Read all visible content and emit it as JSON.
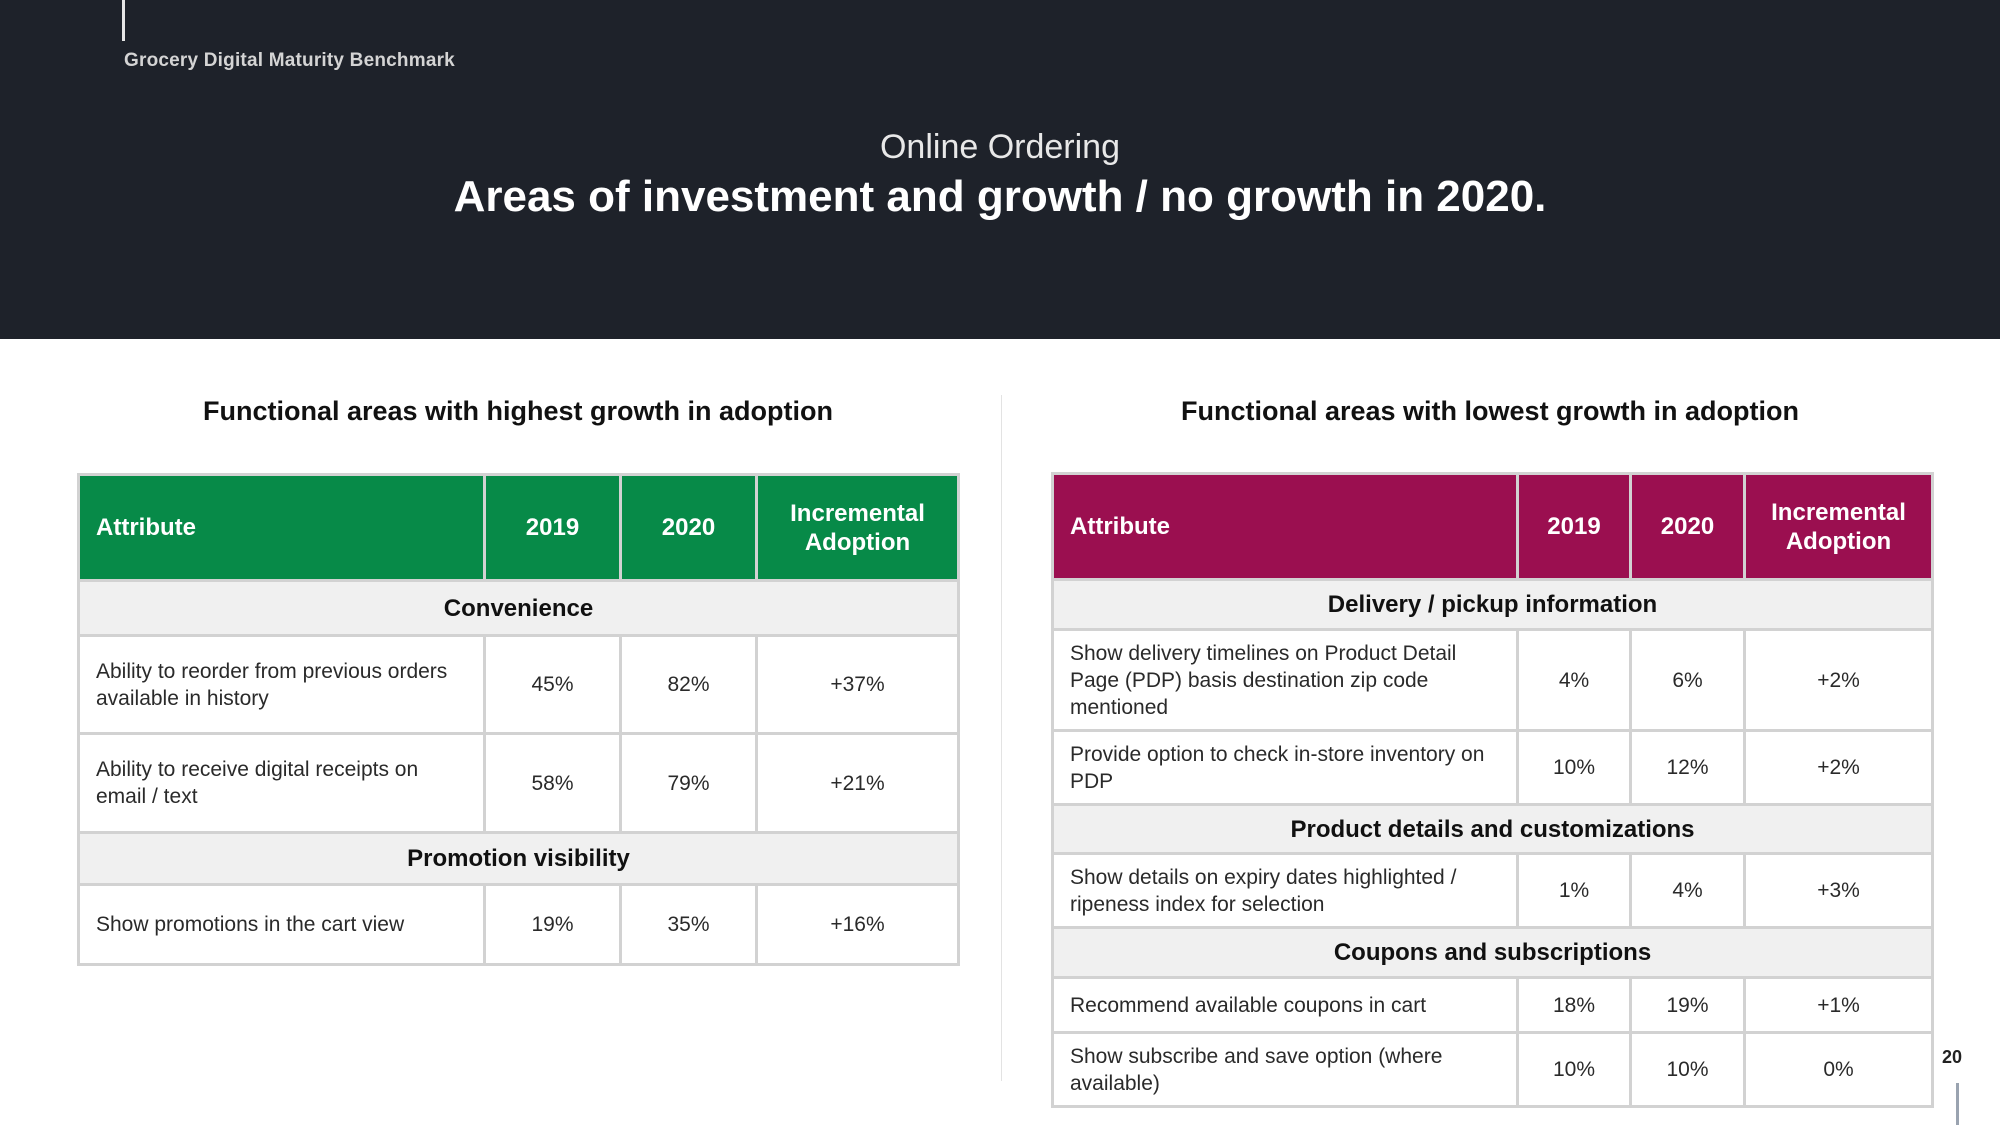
{
  "header": {
    "brand": "Grocery Digital Maturity Benchmark",
    "subtitle": "Online Ordering",
    "title": "Areas of investment and growth / no growth in 2020."
  },
  "colors": {
    "header_bg": "#1e222a",
    "green": "#078a48",
    "magenta": "#9b0f50"
  },
  "left": {
    "heading": "Functional areas with highest growth in adoption",
    "columns": [
      "Attribute",
      "2019",
      "2020",
      "Incremental Adoption"
    ],
    "sections": [
      {
        "category": "Convenience",
        "rows": [
          {
            "attribute": "Ability to reorder from previous orders available in history",
            "y2019": "45%",
            "y2020": "82%",
            "inc": "+37%"
          },
          {
            "attribute": "Ability to receive digital receipts on email / text",
            "y2019": "58%",
            "y2020": "79%",
            "inc": "+21%"
          }
        ]
      },
      {
        "category": "Promotion visibility",
        "rows": [
          {
            "attribute": "Show promotions in the cart view",
            "y2019": "19%",
            "y2020": "35%",
            "inc": "+16%"
          }
        ]
      }
    ]
  },
  "right": {
    "heading": "Functional areas with lowest growth in adoption",
    "columns": [
      "Attribute",
      "2019",
      "2020",
      "Incremental Adoption"
    ],
    "sections": [
      {
        "category": "Delivery / pickup information",
        "rows": [
          {
            "attribute": "Show delivery timelines on Product Detail Page (PDP) basis destination zip code mentioned",
            "y2019": "4%",
            "y2020": "6%",
            "inc": "+2%"
          },
          {
            "attribute": "Provide option to check in-store inventory on PDP",
            "y2019": "10%",
            "y2020": "12%",
            "inc": "+2%"
          }
        ]
      },
      {
        "category": "Product details and customizations",
        "rows": [
          {
            "attribute": "Show details on expiry dates highlighted / ripeness index for selection",
            "y2019": "1%",
            "y2020": "4%",
            "inc": "+3%"
          }
        ]
      },
      {
        "category": "Coupons and subscriptions",
        "rows": [
          {
            "attribute": "Recommend available coupons in cart",
            "y2019": "18%",
            "y2020": "19%",
            "inc": "+1%"
          },
          {
            "attribute": "Show subscribe and save option (where available)",
            "y2019": "10%",
            "y2020": "10%",
            "inc": "0%"
          }
        ]
      }
    ]
  },
  "page_number": "20"
}
